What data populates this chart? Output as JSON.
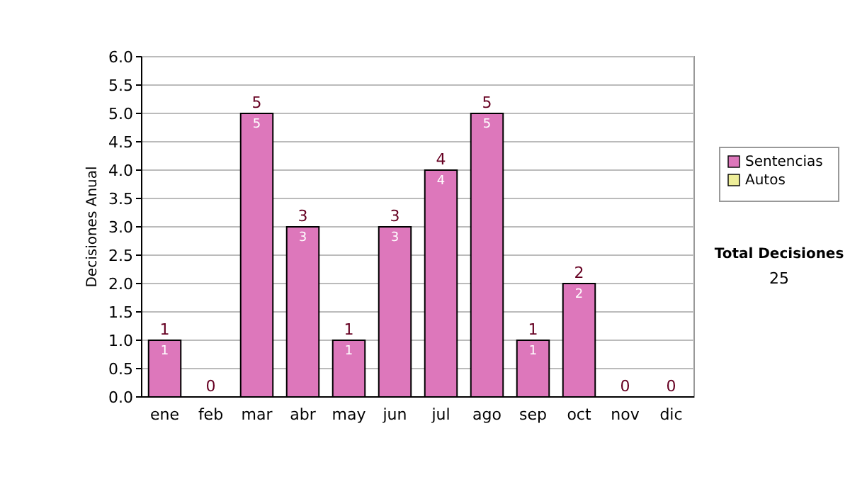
{
  "chart_data": {
    "type": "bar",
    "ylabel": "Decisiones Anual",
    "categories": [
      "ene",
      "feb",
      "mar",
      "abr",
      "may",
      "jun",
      "jul",
      "ago",
      "sep",
      "oct",
      "nov",
      "dic"
    ],
    "series": [
      {
        "name": "Sentencias",
        "color": "#dd77bb",
        "values": [
          1,
          0,
          5,
          3,
          1,
          3,
          4,
          5,
          1,
          2,
          0,
          0
        ],
        "value_labels": [
          "1",
          null,
          "5",
          "3",
          "1",
          "3",
          "4",
          "5",
          "1",
          "2",
          null,
          null
        ]
      },
      {
        "name": "Autos",
        "color": "#eeee99",
        "values": [
          0,
          0,
          0,
          0,
          0,
          0,
          0,
          0,
          0,
          0,
          0,
          0
        ]
      }
    ],
    "stacked": true,
    "totals": [
      "1",
      "0",
      "5",
      "3",
      "1",
      "3",
      "4",
      "5",
      "1",
      "2",
      "0",
      "0"
    ],
    "ylim": [
      0,
      6
    ],
    "yticks": [
      {
        "value": 0,
        "label": "0.0"
      },
      {
        "value": 0.5,
        "label": "0.5"
      },
      {
        "value": 1,
        "label": "1.0"
      },
      {
        "value": 1.5,
        "label": "1.5"
      },
      {
        "value": 2,
        "label": "2.0"
      },
      {
        "value": 2.5,
        "label": "2.5"
      },
      {
        "value": 3,
        "label": "3.0"
      },
      {
        "value": 3.5,
        "label": "3.5"
      },
      {
        "value": 4,
        "label": "4.0"
      },
      {
        "value": 4.5,
        "label": "4.5"
      },
      {
        "value": 5,
        "label": "5.0"
      },
      {
        "value": 5.5,
        "label": "5.5"
      },
      {
        "value": 6,
        "label": "6.0"
      }
    ],
    "grid": "y",
    "legend": "right",
    "annotations": [
      "Total Decisiones",
      "25"
    ]
  }
}
